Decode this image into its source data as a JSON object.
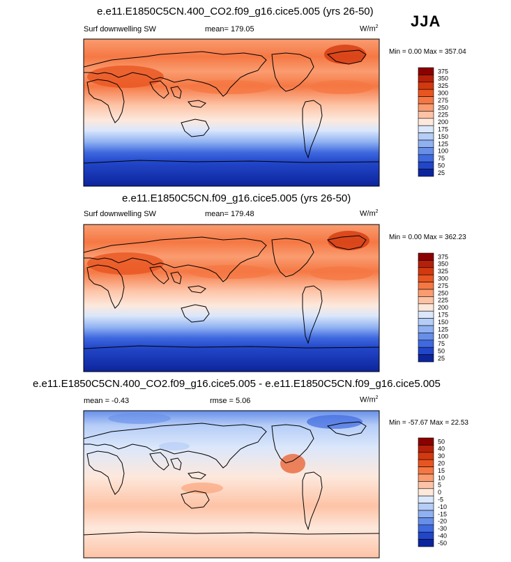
{
  "season": "JJA",
  "chart_data": [
    {
      "type": "heatmap",
      "title": "e.e11.E1850C5CN.400_CO2.f09_g16.cice5.005 (yrs 26-50)",
      "left_label": "Surf downwelling SW",
      "center_label": "mean= 179.05",
      "units": "W/m",
      "units_sup": "2",
      "minmax": "Min =   0.00 Max = 357.04",
      "levels": [
        "375",
        "350",
        "325",
        "300",
        "275",
        "250",
        "225",
        "200",
        "175",
        "150",
        "125",
        "100",
        "75",
        "50",
        "25"
      ],
      "colors": [
        "#8b0000",
        "#b5200b",
        "#d3390f",
        "#e95520",
        "#f57844",
        "#fa9c70",
        "#fdc3a6",
        "#fde8dc",
        "#dbe7fb",
        "#b5cdf7",
        "#8fb1f2",
        "#678fe9",
        "#3f69df",
        "#2246c9",
        "#0d259c"
      ]
    },
    {
      "type": "heatmap",
      "title": "e.e11.E1850C5CN.f09_g16.cice5.005 (yrs 26-50)",
      "left_label": "Surf downwelling SW",
      "center_label": "mean= 179.48",
      "units": "W/m",
      "units_sup": "2",
      "minmax": "Min =   0.00 Max = 362.23",
      "levels": [
        "375",
        "350",
        "325",
        "300",
        "275",
        "250",
        "225",
        "200",
        "175",
        "150",
        "125",
        "100",
        "75",
        "50",
        "25"
      ],
      "colors": [
        "#8b0000",
        "#b5200b",
        "#d3390f",
        "#e95520",
        "#f57844",
        "#fa9c70",
        "#fdc3a6",
        "#fde8dc",
        "#dbe7fb",
        "#b5cdf7",
        "#8fb1f2",
        "#678fe9",
        "#3f69df",
        "#2246c9",
        "#0d259c"
      ]
    },
    {
      "type": "heatmap",
      "title": "e.e11.E1850C5CN.400_CO2.f09_g16.cice5.005 - e.e11.E1850C5CN.f09_g16.cice5.005",
      "left_label": "mean =  -0.43",
      "center_label": "rmse =   5.06",
      "units": "W/m",
      "units_sup": "2",
      "minmax": "Min = -57.67 Max =  22.53",
      "levels": [
        "50",
        "40",
        "30",
        "20",
        "15",
        "10",
        "5",
        "0",
        "-5",
        "-10",
        "-15",
        "-20",
        "-30",
        "-40",
        "-50"
      ],
      "colors": [
        "#8b0000",
        "#b5200b",
        "#d3390f",
        "#e95520",
        "#f57844",
        "#fa9c70",
        "#fdc3a6",
        "#fde8dc",
        "#dbe7fb",
        "#b5cdf7",
        "#8fb1f2",
        "#678fe9",
        "#3f69df",
        "#2246c9",
        "#0d259c"
      ]
    }
  ]
}
